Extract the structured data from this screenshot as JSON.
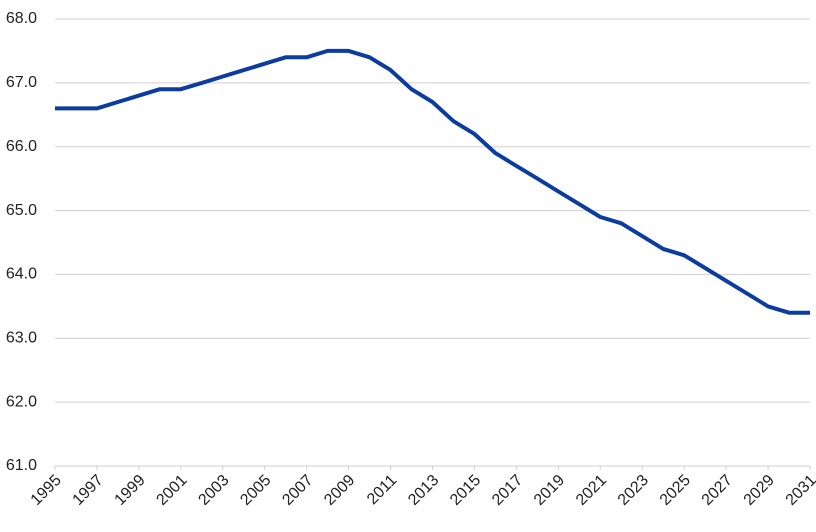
{
  "chart_data": {
    "type": "line",
    "x": [
      1995,
      1996,
      1997,
      1998,
      1999,
      2000,
      2001,
      2002,
      2003,
      2004,
      2005,
      2006,
      2007,
      2008,
      2009,
      2010,
      2011,
      2012,
      2013,
      2014,
      2015,
      2016,
      2017,
      2018,
      2019,
      2020,
      2021,
      2022,
      2023,
      2024,
      2025,
      2026,
      2027,
      2028,
      2029,
      2030,
      2031
    ],
    "values": [
      66.6,
      66.6,
      66.6,
      66.7,
      66.8,
      66.9,
      66.9,
      67.0,
      67.1,
      67.2,
      67.3,
      67.4,
      67.4,
      67.5,
      67.5,
      67.4,
      67.2,
      66.9,
      66.7,
      66.4,
      66.2,
      65.9,
      65.7,
      65.5,
      65.3,
      65.1,
      64.9,
      64.8,
      64.6,
      64.4,
      64.3,
      64.1,
      63.9,
      63.7,
      63.5,
      63.4,
      63.4
    ],
    "color": "#0b3c9f",
    "xlim": [
      1995,
      2031
    ],
    "xticks": [
      1995,
      1997,
      1999,
      2001,
      2003,
      2005,
      2007,
      2009,
      2011,
      2013,
      2015,
      2017,
      2019,
      2021,
      2023,
      2025,
      2027,
      2029,
      2031
    ],
    "ylim": [
      61,
      68
    ],
    "yticks": [
      {
        "value": 61,
        "label": "61.0"
      },
      {
        "value": 62,
        "label": "62.0"
      },
      {
        "value": 63,
        "label": "63.0"
      },
      {
        "value": 64,
        "label": "64.0"
      },
      {
        "value": 65,
        "label": "65.0"
      },
      {
        "value": 66,
        "label": "66.0"
      },
      {
        "value": 67,
        "label": "67.0"
      },
      {
        "value": 68,
        "label": "68.0"
      }
    ],
    "grid": true
  }
}
